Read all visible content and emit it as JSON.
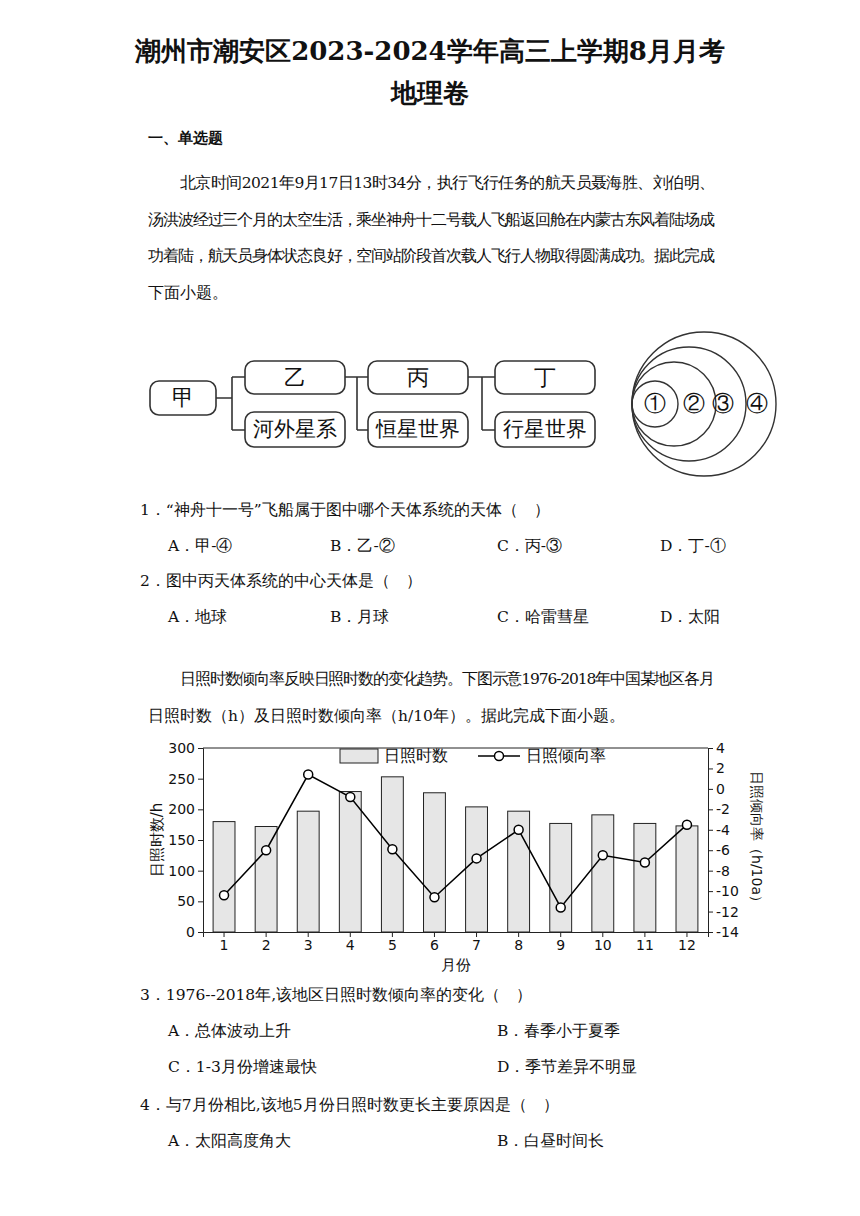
{
  "header": {
    "title_lines": [
      "潮州市潮安区2023-2024学年高三上学期8月月考",
      "地理卷"
    ]
  },
  "section": "一、单选题",
  "passages": [
    {
      "lines": [
        "北京时间2021年9月17日13时34分，执行飞行任务的航天员聂海胜、刘伯明、",
        "汤洪波经过三个月的太空生活，乘坐神舟十二号载人飞船返回舱在内蒙古东风着陆场成",
        "功着陆，航天员身体状态良好，空间站阶段首次载人飞行人物取得圆满成功。据此完成",
        "下面小题。"
      ]
    },
    {
      "lines": [
        "日照时数倾向率反映日照时数的变化趋势。下图示意1976-2018年中国某地区各月",
        "日照时数（h）及日照时数倾向率（h/10年）。据此完成下面小题。"
      ]
    }
  ],
  "diagram": {
    "root": "甲",
    "top": [
      "乙",
      "丙",
      "丁"
    ],
    "bottom": [
      "河外星系",
      "恒星世界",
      "行星世界"
    ],
    "circles": [
      "①",
      "②",
      "③",
      "④"
    ]
  },
  "questions": [
    {
      "stem": "1．“神舟十一号”飞船属于图中哪个天体系统的天体（　）",
      "options": [
        "A．甲-④",
        "B．乙-②",
        "C．丙-③",
        "D．丁-①"
      ]
    },
    {
      "stem": "2．图中丙天体系统的中心天体是（　）",
      "options": [
        "A．地球",
        "B．月球",
        "C．哈雷彗星",
        "D．太阳"
      ]
    },
    {
      "stem": "3．1976--2018年,该地区日照时数倾向率的变化（　）",
      "options": [
        "A．总体波动上升",
        "B．春季小于夏季",
        "C．1-3月份增速最快",
        "D．季节差异不明显"
      ]
    },
    {
      "stem": "4．与7月份相比,该地5月份日照时数更长主要原因是（　）",
      "options": [
        "A．太阳高度角大",
        "B．白昼时间长"
      ]
    }
  ],
  "chart_data": {
    "type": "bar",
    "categories": [
      "1",
      "2",
      "3",
      "4",
      "5",
      "6",
      "7",
      "8",
      "9",
      "10",
      "11",
      "12"
    ],
    "x_label": "月份",
    "y_label": "日照时数/h",
    "y2_label": "日照倾向率（h/10a）",
    "ylim": [
      0,
      300
    ],
    "yticks": [
      0,
      50,
      100,
      150,
      200,
      250,
      300
    ],
    "y2lim": [
      -14,
      4
    ],
    "y2ticks": [
      -14,
      -12,
      -10,
      -8,
      -6,
      -4,
      -2,
      0,
      2,
      4
    ],
    "legend": "top",
    "series": [
      {
        "name": "日照时数",
        "type": "bar",
        "color": "#e6e6e6",
        "values": [
          180,
          172,
          197,
          229,
          253,
          227,
          204,
          197,
          177,
          191,
          177,
          173
        ]
      },
      {
        "name": "日照倾向率",
        "type": "line",
        "axis": "y2",
        "color": "#000000",
        "marker": "circle",
        "values": [
          -10.4,
          -6.0,
          1.4,
          -0.8,
          -5.9,
          -10.6,
          -6.8,
          -4.0,
          -11.6,
          -6.5,
          -7.2,
          -3.5
        ]
      }
    ]
  }
}
